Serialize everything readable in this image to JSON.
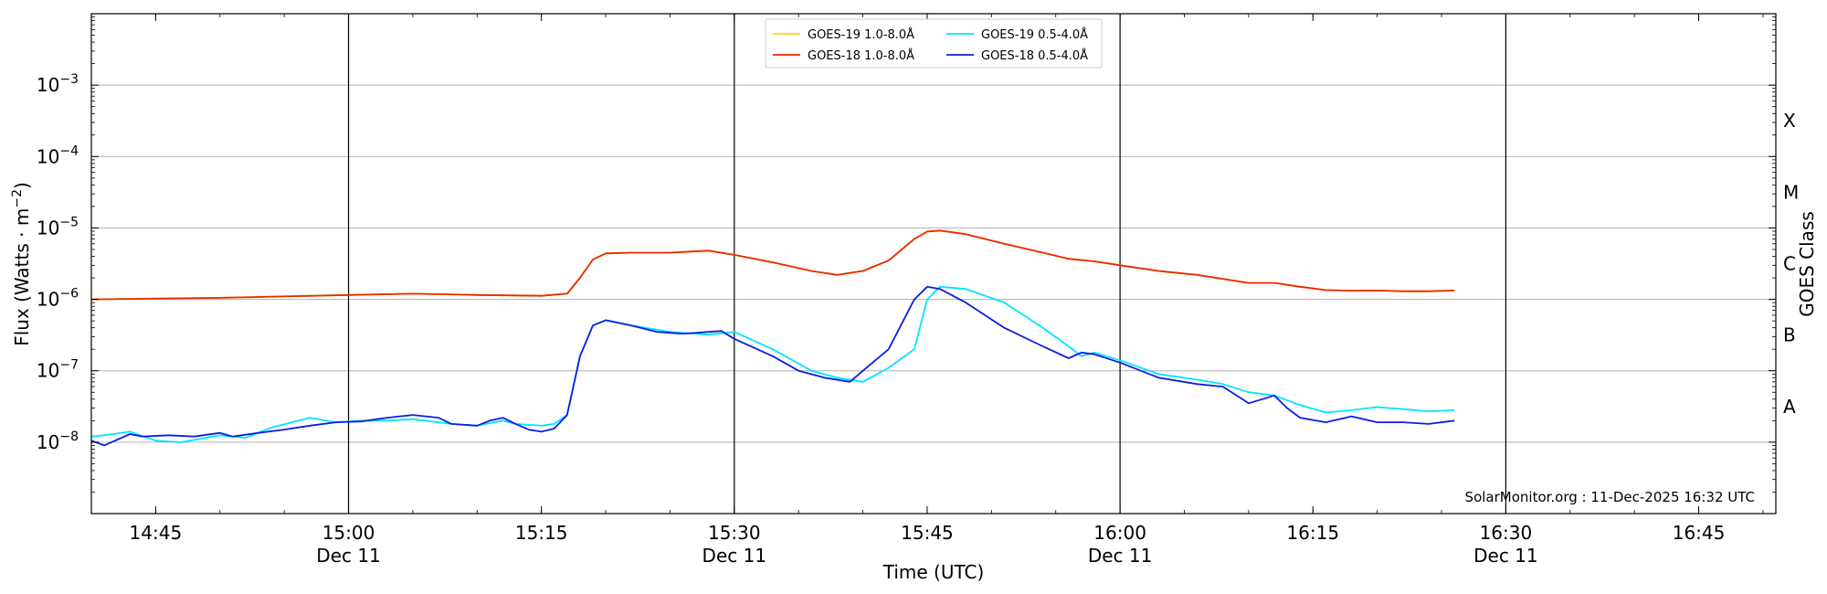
{
  "chart_data": {
    "type": "line",
    "title": "",
    "xlabel": "Time (UTC)",
    "ylabel": "Flux (Watts · m",
    "ylabel_sup": "−2",
    "ylabel_close": ")",
    "right_label": "GOES Class",
    "yscale": "log",
    "ylim": [
      1e-09,
      0.01
    ],
    "xlim": [
      "14:40",
      "16:51"
    ],
    "grid": "horizontal",
    "legend_position": "top-center",
    "credit": "SolarMonitor.org : 11-Dec-2025 16:32 UTC",
    "x_ticks": [
      {
        "time": "14:45",
        "label": "14:45",
        "date": ""
      },
      {
        "time": "15:00",
        "label": "15:00",
        "date": "Dec 11"
      },
      {
        "time": "15:15",
        "label": "15:15",
        "date": ""
      },
      {
        "time": "15:30",
        "label": "15:30",
        "date": "Dec 11"
      },
      {
        "time": "15:45",
        "label": "15:45",
        "date": ""
      },
      {
        "time": "16:00",
        "label": "16:00",
        "date": "Dec 11"
      },
      {
        "time": "16:15",
        "label": "16:15",
        "date": ""
      },
      {
        "time": "16:30",
        "label": "16:30",
        "date": "Dec 11"
      },
      {
        "time": "16:45",
        "label": "16:45",
        "date": ""
      }
    ],
    "vlines": [
      "15:00",
      "15:30",
      "16:00",
      "16:30"
    ],
    "y_ticks": [
      {
        "value": 1e-08,
        "base": "10",
        "exp": "−8"
      },
      {
        "value": 1e-07,
        "base": "10",
        "exp": "−7"
      },
      {
        "value": 1e-06,
        "base": "10",
        "exp": "−6"
      },
      {
        "value": 1e-05,
        "base": "10",
        "exp": "−5"
      },
      {
        "value": 0.0001,
        "base": "10",
        "exp": "−4"
      },
      {
        "value": 0.001,
        "base": "10",
        "exp": "−3"
      }
    ],
    "goes_classes": [
      {
        "label": "A",
        "low": 1e-08,
        "high": 1e-07
      },
      {
        "label": "B",
        "low": 1e-07,
        "high": 1e-06
      },
      {
        "label": "C",
        "low": 1e-06,
        "high": 1e-05
      },
      {
        "label": "M",
        "low": 1e-05,
        "high": 0.0001
      },
      {
        "label": "X",
        "low": 0.0001,
        "high": 0.001
      }
    ],
    "series": [
      {
        "name": "GOES-19 1.0-8.0Å",
        "color": "#ffd700",
        "x": [
          "14:40",
          "14:50",
          "15:00",
          "15:05",
          "15:10",
          "15:15",
          "15:17",
          "15:18",
          "15:19",
          "15:20",
          "15:22",
          "15:25",
          "15:28",
          "15:30",
          "15:33",
          "15:36",
          "15:38",
          "15:40",
          "15:42",
          "15:44",
          "15:45",
          "15:46",
          "15:48",
          "15:51",
          "15:54",
          "15:56",
          "15:58",
          "16:00",
          "16:03",
          "16:06",
          "16:10",
          "16:12",
          "16:14",
          "16:16",
          "16:18",
          "16:20",
          "16:22",
          "16:24",
          "16:26"
        ],
        "y": [
          1e-06,
          1.05e-06,
          1.15e-06,
          1.2e-06,
          1.15e-06,
          1.12e-06,
          1.2e-06,
          2e-06,
          3.6e-06,
          4.4e-06,
          4.5e-06,
          4.5e-06,
          4.8e-06,
          4.2e-06,
          3.3e-06,
          2.5e-06,
          2.2e-06,
          2.5e-06,
          3.5e-06,
          7e-06,
          8.9e-06,
          9.2e-06,
          8.2e-06,
          6e-06,
          4.5e-06,
          3.7e-06,
          3.4e-06,
          3e-06,
          2.5e-06,
          2.2e-06,
          1.7e-06,
          1.7e-06,
          1.5e-06,
          1.35e-06,
          1.32e-06,
          1.33e-06,
          1.3e-06,
          1.3e-06,
          1.33e-06
        ]
      },
      {
        "name": "GOES-19 0.5-4.0Å",
        "color": "#00e5ff",
        "x": [
          "14:40",
          "14:41",
          "14:43",
          "14:45",
          "14:47",
          "14:50",
          "14:52",
          "14:54",
          "14:57",
          "14:59",
          "15:01",
          "15:03",
          "15:05",
          "15:08",
          "15:10",
          "15:12",
          "15:13",
          "15:15",
          "15:16",
          "15:17",
          "15:18",
          "15:19",
          "15:20",
          "15:22",
          "15:25",
          "15:28",
          "15:30",
          "15:33",
          "15:36",
          "15:38",
          "15:40",
          "15:42",
          "15:44",
          "15:45",
          "15:46",
          "15:48",
          "15:51",
          "15:54",
          "15:56",
          "15:57",
          "15:58",
          "16:00",
          "16:03",
          "16:06",
          "16:08",
          "16:10",
          "16:12",
          "16:14",
          "16:16",
          "16:18",
          "16:20",
          "16:22",
          "16:24",
          "16:26"
        ],
        "y": [
          1.2e-08,
          1.25e-08,
          1.4e-08,
          1.05e-08,
          1e-08,
          1.25e-08,
          1.15e-08,
          1.6e-08,
          2.2e-08,
          1.9e-08,
          2e-08,
          2e-08,
          2.1e-08,
          1.8e-08,
          1.7e-08,
          2e-08,
          1.8e-08,
          1.7e-08,
          1.8e-08,
          2.4e-08,
          1.6e-07,
          4.3e-07,
          5.1e-07,
          4.3e-07,
          3.5e-07,
          3.2e-07,
          3.5e-07,
          2e-07,
          1e-07,
          8e-08,
          7e-08,
          1.1e-07,
          2e-07,
          1e-06,
          1.5e-06,
          1.4e-06,
          9e-07,
          4e-07,
          2.2e-07,
          1.6e-07,
          1.8e-07,
          1.4e-07,
          9e-08,
          7.5e-08,
          6.5e-08,
          5e-08,
          4.5e-08,
          3.3e-08,
          2.6e-08,
          2.8e-08,
          3.1e-08,
          2.9e-08,
          2.7e-08,
          2.8e-08
        ]
      },
      {
        "name": "GOES-18 1.0-8.0Å",
        "color": "#e82a00",
        "x": [
          "14:40",
          "14:50",
          "15:00",
          "15:05",
          "15:10",
          "15:15",
          "15:17",
          "15:18",
          "15:19",
          "15:20",
          "15:22",
          "15:25",
          "15:28",
          "15:30",
          "15:33",
          "15:36",
          "15:38",
          "15:40",
          "15:42",
          "15:44",
          "15:45",
          "15:46",
          "15:48",
          "15:51",
          "15:54",
          "15:56",
          "15:58",
          "16:00",
          "16:03",
          "16:06",
          "16:10",
          "16:12",
          "16:14",
          "16:16",
          "16:18",
          "16:20",
          "16:22",
          "16:24",
          "16:26"
        ],
        "y": [
          1e-06,
          1.05e-06,
          1.15e-06,
          1.2e-06,
          1.15e-06,
          1.12e-06,
          1.2e-06,
          2e-06,
          3.6e-06,
          4.4e-06,
          4.5e-06,
          4.5e-06,
          4.8e-06,
          4.2e-06,
          3.3e-06,
          2.5e-06,
          2.2e-06,
          2.5e-06,
          3.5e-06,
          7e-06,
          8.9e-06,
          9.2e-06,
          8.2e-06,
          6e-06,
          4.5e-06,
          3.7e-06,
          3.4e-06,
          3e-06,
          2.5e-06,
          2.2e-06,
          1.7e-06,
          1.7e-06,
          1.5e-06,
          1.35e-06,
          1.32e-06,
          1.33e-06,
          1.3e-06,
          1.3e-06,
          1.33e-06
        ]
      },
      {
        "name": "GOES-18 0.5-4.0Å",
        "color": "#0a1fe0",
        "x": [
          "14:40",
          "14:41",
          "14:43",
          "14:44",
          "14:46",
          "14:48",
          "14:50",
          "14:51",
          "14:53",
          "14:55",
          "14:57",
          "14:59",
          "15:01",
          "15:03",
          "15:05",
          "15:07",
          "15:08",
          "15:10",
          "15:11",
          "15:12",
          "15:13",
          "15:14",
          "15:15",
          "15:16",
          "15:17",
          "15:18",
          "15:19",
          "15:20",
          "15:22",
          "15:24",
          "15:26",
          "15:28",
          "15:29",
          "15:30",
          "15:33",
          "15:35",
          "15:37",
          "15:39",
          "15:40",
          "15:42",
          "15:44",
          "15:45",
          "15:46",
          "15:48",
          "15:51",
          "15:54",
          "15:56",
          "15:57",
          "15:58",
          "16:00",
          "16:03",
          "16:06",
          "16:08",
          "16:10",
          "16:12",
          "16:13",
          "16:14",
          "16:16",
          "16:18",
          "16:20",
          "16:22",
          "16:24",
          "16:26"
        ],
        "y": [
          1.05e-08,
          9e-09,
          1.3e-08,
          1.2e-08,
          1.25e-08,
          1.2e-08,
          1.35e-08,
          1.2e-08,
          1.35e-08,
          1.5e-08,
          1.7e-08,
          1.9e-08,
          1.95e-08,
          2.2e-08,
          2.4e-08,
          2.2e-08,
          1.8e-08,
          1.7e-08,
          2e-08,
          2.2e-08,
          1.8e-08,
          1.5e-08,
          1.4e-08,
          1.55e-08,
          2.4e-08,
          1.6e-07,
          4.3e-07,
          5.1e-07,
          4.3e-07,
          3.5e-07,
          3.3e-07,
          3.5e-07,
          3.6e-07,
          2.8e-07,
          1.6e-07,
          1e-07,
          8e-08,
          7e-08,
          1e-07,
          2e-07,
          1e-06,
          1.5e-06,
          1.4e-06,
          9e-07,
          4e-07,
          2.2e-07,
          1.5e-07,
          1.8e-07,
          1.7e-07,
          1.3e-07,
          8e-08,
          6.5e-08,
          6e-08,
          3.5e-08,
          4.5e-08,
          3e-08,
          2.2e-08,
          1.9e-08,
          2.3e-08,
          1.9e-08,
          1.9e-08,
          1.8e-08,
          2e-08
        ]
      }
    ]
  }
}
